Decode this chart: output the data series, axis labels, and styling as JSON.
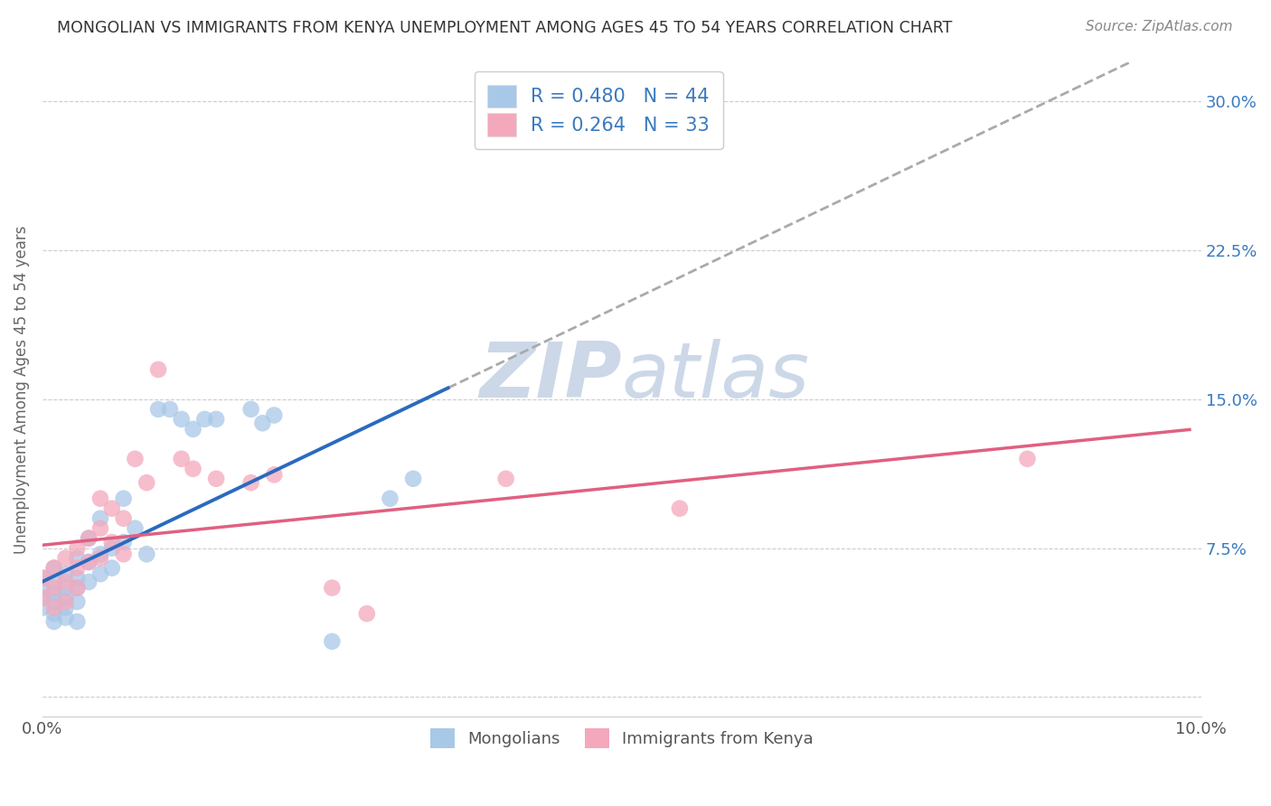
{
  "title": "MONGOLIAN VS IMMIGRANTS FROM KENYA UNEMPLOYMENT AMONG AGES 45 TO 54 YEARS CORRELATION CHART",
  "source": "Source: ZipAtlas.com",
  "ylabel": "Unemployment Among Ages 45 to 54 years",
  "xlim": [
    0.0,
    0.1
  ],
  "ylim": [
    -0.01,
    0.32
  ],
  "ytick_labels_right": [
    "",
    "7.5%",
    "15.0%",
    "22.5%",
    "30.0%"
  ],
  "yticks_right": [
    0.0,
    0.075,
    0.15,
    0.225,
    0.3
  ],
  "mongolian_R": 0.48,
  "mongolian_N": 44,
  "kenya_R": 0.264,
  "kenya_N": 33,
  "mongolian_color": "#a8c8e8",
  "kenya_color": "#f4a8bc",
  "mongolian_line_color": "#2a6abf",
  "kenya_line_color": "#e06080",
  "trendline_dashed_color": "#aaaaaa",
  "background_color": "#ffffff",
  "watermark_color": "#ccd8e8",
  "mongolian_scatter": [
    [
      0.0,
      0.06
    ],
    [
      0.0,
      0.055
    ],
    [
      0.0,
      0.05
    ],
    [
      0.0,
      0.045
    ],
    [
      0.001,
      0.065
    ],
    [
      0.001,
      0.058
    ],
    [
      0.001,
      0.052
    ],
    [
      0.001,
      0.048
    ],
    [
      0.001,
      0.042
    ],
    [
      0.001,
      0.038
    ],
    [
      0.002,
      0.062
    ],
    [
      0.002,
      0.055
    ],
    [
      0.002,
      0.05
    ],
    [
      0.002,
      0.045
    ],
    [
      0.002,
      0.04
    ],
    [
      0.003,
      0.07
    ],
    [
      0.003,
      0.06
    ],
    [
      0.003,
      0.055
    ],
    [
      0.003,
      0.048
    ],
    [
      0.003,
      0.038
    ],
    [
      0.004,
      0.08
    ],
    [
      0.004,
      0.068
    ],
    [
      0.004,
      0.058
    ],
    [
      0.005,
      0.09
    ],
    [
      0.005,
      0.072
    ],
    [
      0.005,
      0.062
    ],
    [
      0.006,
      0.075
    ],
    [
      0.006,
      0.065
    ],
    [
      0.007,
      0.1
    ],
    [
      0.007,
      0.078
    ],
    [
      0.008,
      0.085
    ],
    [
      0.009,
      0.072
    ],
    [
      0.01,
      0.145
    ],
    [
      0.011,
      0.145
    ],
    [
      0.012,
      0.14
    ],
    [
      0.013,
      0.135
    ],
    [
      0.014,
      0.14
    ],
    [
      0.015,
      0.14
    ],
    [
      0.018,
      0.145
    ],
    [
      0.019,
      0.138
    ],
    [
      0.02,
      0.142
    ],
    [
      0.025,
      0.028
    ],
    [
      0.03,
      0.1
    ],
    [
      0.032,
      0.11
    ]
  ],
  "kenya_scatter": [
    [
      0.0,
      0.06
    ],
    [
      0.0,
      0.05
    ],
    [
      0.001,
      0.065
    ],
    [
      0.001,
      0.055
    ],
    [
      0.001,
      0.045
    ],
    [
      0.002,
      0.07
    ],
    [
      0.002,
      0.058
    ],
    [
      0.002,
      0.048
    ],
    [
      0.003,
      0.075
    ],
    [
      0.003,
      0.065
    ],
    [
      0.003,
      0.055
    ],
    [
      0.004,
      0.08
    ],
    [
      0.004,
      0.068
    ],
    [
      0.005,
      0.1
    ],
    [
      0.005,
      0.085
    ],
    [
      0.005,
      0.07
    ],
    [
      0.006,
      0.095
    ],
    [
      0.006,
      0.078
    ],
    [
      0.007,
      0.09
    ],
    [
      0.007,
      0.072
    ],
    [
      0.008,
      0.12
    ],
    [
      0.009,
      0.108
    ],
    [
      0.01,
      0.165
    ],
    [
      0.012,
      0.12
    ],
    [
      0.013,
      0.115
    ],
    [
      0.015,
      0.11
    ],
    [
      0.018,
      0.108
    ],
    [
      0.02,
      0.112
    ],
    [
      0.025,
      0.055
    ],
    [
      0.028,
      0.042
    ],
    [
      0.04,
      0.11
    ],
    [
      0.055,
      0.095
    ],
    [
      0.085,
      0.12
    ]
  ]
}
